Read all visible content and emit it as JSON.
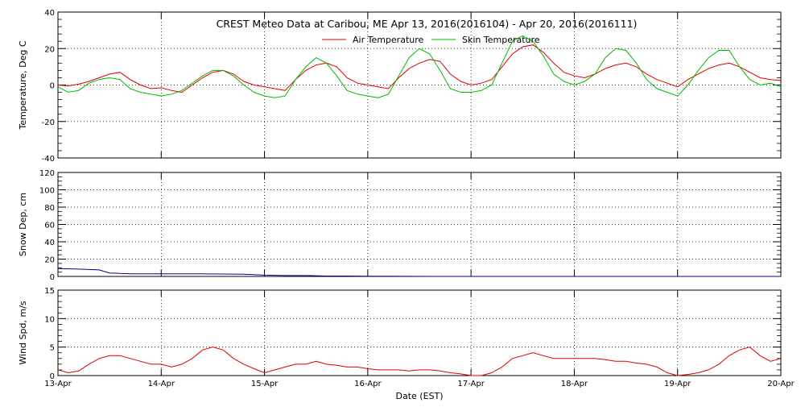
{
  "chart_data": [
    {
      "type": "line",
      "title": "CREST Meteo Data at Caribou, ME   Apr 13, 2016(2016104) - Apr 20, 2016(2016111)",
      "ylabel": "Temperature, Deg C",
      "ylim": [
        -40,
        40
      ],
      "yticks": [
        "40",
        "20",
        "0",
        "-20",
        "-40"
      ],
      "grid": true,
      "legend_position": "top-center",
      "series": [
        {
          "name": "Air Temperature",
          "color": "#dd0000",
          "x": [
            0,
            0.1,
            0.2,
            0.3,
            0.4,
            0.5,
            0.6,
            0.7,
            0.8,
            0.9,
            1,
            1.1,
            1.2,
            1.3,
            1.4,
            1.5,
            1.6,
            1.7,
            1.8,
            1.9,
            2,
            2.1,
            2.2,
            2.3,
            2.4,
            2.5,
            2.6,
            2.7,
            2.8,
            2.9,
            3,
            3.1,
            3.2,
            3.3,
            3.4,
            3.5,
            3.6,
            3.7,
            3.8,
            3.9,
            4,
            4.1,
            4.2,
            4.3,
            4.4,
            4.5,
            4.6,
            4.7,
            4.8,
            4.9,
            5,
            5.1,
            5.2,
            5.3,
            5.4,
            5.5,
            5.6,
            5.7,
            5.8,
            5.9,
            6,
            6.1,
            6.2,
            6.3,
            6.4,
            6.5,
            6.6,
            6.7,
            6.8,
            6.9,
            7
          ],
          "values": [
            0,
            -0.5,
            0.5,
            2,
            4,
            6,
            7,
            3,
            0,
            -2,
            -1.5,
            -3,
            -4,
            0,
            4,
            7,
            8,
            6,
            2,
            0,
            -1,
            -2,
            -3,
            3,
            8,
            11,
            12,
            10,
            4,
            1,
            0,
            -1,
            -2,
            4,
            9,
            12,
            14,
            13,
            6,
            2,
            0,
            1,
            3,
            10,
            17,
            21,
            22,
            18,
            12,
            7,
            5,
            4,
            6,
            9,
            11,
            12,
            10,
            6,
            3,
            1,
            -1,
            3,
            6,
            9,
            11,
            12,
            10,
            7,
            4,
            3,
            2.5
          ]
        },
        {
          "name": "Skin Temperature",
          "color": "#00bb00",
          "x": [
            0,
            0.1,
            0.2,
            0.3,
            0.4,
            0.5,
            0.6,
            0.7,
            0.8,
            0.9,
            1,
            1.1,
            1.2,
            1.3,
            1.4,
            1.5,
            1.6,
            1.7,
            1.8,
            1.9,
            2,
            2.1,
            2.2,
            2.3,
            2.4,
            2.5,
            2.6,
            2.7,
            2.8,
            2.9,
            3,
            3.1,
            3.2,
            3.3,
            3.4,
            3.5,
            3.6,
            3.7,
            3.8,
            3.9,
            4,
            4.1,
            4.2,
            4.3,
            4.4,
            4.5,
            4.6,
            4.7,
            4.8,
            4.9,
            5,
            5.1,
            5.2,
            5.3,
            5.4,
            5.5,
            5.6,
            5.7,
            5.8,
            5.9,
            6,
            6.1,
            6.2,
            6.3,
            6.4,
            6.5,
            6.6,
            6.7,
            6.8,
            6.9,
            7
          ],
          "values": [
            -1,
            -4,
            -3,
            1,
            3,
            4,
            3,
            -2,
            -4,
            -5,
            -6,
            -5,
            -3,
            1,
            5,
            8,
            8,
            5,
            0,
            -4,
            -6,
            -7,
            -6,
            3,
            10,
            15,
            12,
            5,
            -3,
            -5,
            -6,
            -7,
            -5,
            5,
            15,
            20,
            17,
            8,
            -2,
            -4,
            -4,
            -3,
            0,
            12,
            24,
            27,
            24,
            16,
            6,
            2,
            0,
            2,
            6,
            15,
            20,
            19,
            12,
            3,
            -2,
            -4,
            -6,
            0,
            8,
            15,
            19,
            19,
            10,
            3,
            0,
            1,
            -1
          ]
        }
      ]
    },
    {
      "type": "line",
      "ylabel": "Snow Dep, cm",
      "ylim": [
        0,
        120
      ],
      "yticks": [
        "120",
        "100",
        "80",
        "60",
        "40",
        "20",
        "0"
      ],
      "grid": true,
      "series": [
        {
          "color": "#000099",
          "x": [
            0,
            0.2,
            0.4,
            0.5,
            0.6,
            0.7,
            0.8,
            1,
            1.2,
            1.4,
            1.6,
            1.8,
            2,
            2.2,
            2.4,
            2.6,
            2.8,
            3,
            3.2,
            3.4,
            3.6,
            3.8,
            4,
            4.2,
            4.4,
            4.6,
            4.8,
            5,
            5.2,
            5.4,
            5.6,
            5.8,
            6,
            6.2,
            6.4,
            6.6,
            6.8,
            7
          ],
          "values": [
            9,
            8.5,
            7.5,
            4,
            3.5,
            3,
            3,
            3,
            3,
            3,
            2.8,
            2.5,
            1.5,
            1,
            1,
            0.5,
            0.5,
            0.3,
            0.2,
            0.1,
            0,
            0,
            0,
            0,
            0,
            0,
            0,
            0,
            0,
            0,
            0,
            0,
            0,
            0,
            0,
            0,
            0,
            0
          ]
        }
      ]
    },
    {
      "type": "line",
      "ylabel": "Wind Spd, m/s",
      "xlabel": "Date (EST)",
      "ylim": [
        0,
        15
      ],
      "yticks": [
        "15",
        "10",
        "5",
        "0"
      ],
      "categories": [
        "13-Apr",
        "14-Apr",
        "15-Apr",
        "16-Apr",
        "17-Apr",
        "18-Apr",
        "19-Apr",
        "20-Apr"
      ],
      "grid": true,
      "series": [
        {
          "color": "#dd0000",
          "x": [
            0,
            0.1,
            0.2,
            0.3,
            0.4,
            0.5,
            0.6,
            0.7,
            0.8,
            0.9,
            1,
            1.1,
            1.2,
            1.3,
            1.4,
            1.5,
            1.6,
            1.7,
            1.8,
            1.9,
            2,
            2.1,
            2.2,
            2.3,
            2.4,
            2.5,
            2.6,
            2.7,
            2.8,
            2.9,
            3,
            3.1,
            3.2,
            3.3,
            3.4,
            3.5,
            3.6,
            3.7,
            3.8,
            3.9,
            4,
            4.1,
            4.2,
            4.3,
            4.4,
            4.5,
            4.6,
            4.7,
            4.8,
            4.9,
            5,
            5.1,
            5.2,
            5.3,
            5.4,
            5.5,
            5.6,
            5.7,
            5.8,
            5.9,
            6,
            6.1,
            6.2,
            6.3,
            6.4,
            6.5,
            6.6,
            6.7,
            6.8,
            6.9,
            7
          ],
          "values": [
            1,
            0.5,
            0.8,
            2,
            3,
            3.5,
            3.5,
            3,
            2.5,
            2,
            2,
            1.5,
            2,
            3,
            4.5,
            5,
            4.5,
            3,
            2,
            1.2,
            0.5,
            1,
            1.5,
            2,
            2,
            2.5,
            2,
            1.8,
            1.5,
            1.5,
            1.2,
            1,
            1,
            1,
            0.8,
            1,
            1,
            0.8,
            0.5,
            0.3,
            0,
            0,
            0.5,
            1.5,
            3,
            3.5,
            4,
            3.5,
            3,
            3,
            3,
            3,
            3,
            2.8,
            2.5,
            2.5,
            2.2,
            2,
            1.5,
            0.5,
            0,
            0.2,
            0.5,
            1,
            2,
            3.5,
            4.5,
            5,
            3.5,
            2.5,
            3
          ]
        }
      ]
    }
  ]
}
